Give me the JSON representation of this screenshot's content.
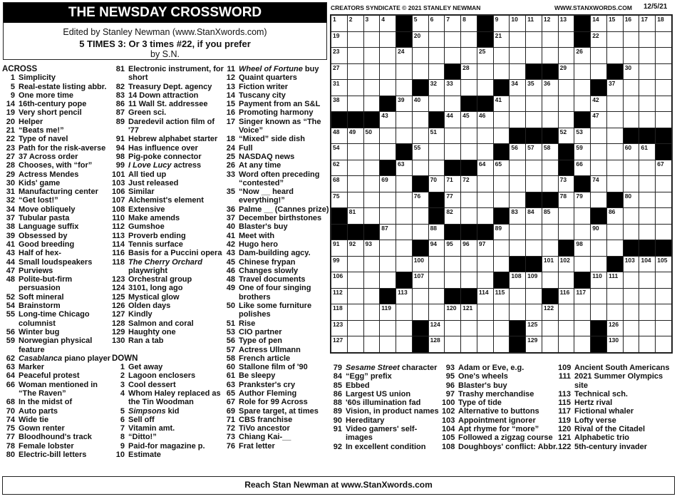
{
  "header": {
    "title": "THE NEWSDAY CROSSWORD",
    "editor": "Edited by Stanley Newman (www.StanXwords.com)",
    "puzzle_title": "5 TIMES 3: Or 3 times #22, if you prefer",
    "byline": "by S.N.",
    "copyright": "CREATORS SYNDICATE © 2021 STANLEY NEWMAN",
    "website": "WWW.STANXWORDS.COM",
    "date": "12/5/21"
  },
  "grid": {
    "rows": [
      "....#....#.....#.....",
      "....#....#.....#.....",
      ".....................",
      ".......#....##...#...",
      ".....#....#.....#....",
      "...#....##...........",
      "###...#........#.....",
      "...........###....###",
      "....#.....#...#.....#",
      "...#...##.....#......",
      ".....#.........#.....",
      "......#.....##...#...",
      "#.....#...#.....#....",
      "###....###...........",
      ".....#........#...###",
      "...........##....#...",
      "....#.....#....#.....",
      "...#...##....#.......",
      ".....................",
      ".....#.....#....#....",
      ".....#.....#....#...."
    ]
  },
  "labels": {
    "across": "ACROSS",
    "down": "DOWN"
  },
  "columns": [
    [
      {
        "h": "across"
      },
      {
        "n": "1",
        "t": "Simplicity"
      },
      {
        "n": "5",
        "t": "Real-estate listing abbr."
      },
      {
        "n": "9",
        "t": "One more time"
      },
      {
        "n": "14",
        "t": "16th-century pope"
      },
      {
        "n": "19",
        "t": "Very short pencil"
      },
      {
        "n": "20",
        "t": "Helper"
      },
      {
        "n": "21",
        "t": "“Beats me!”"
      },
      {
        "n": "22",
        "t": "Type of navel"
      },
      {
        "n": "23",
        "t": "Path for the risk-averse"
      },
      {
        "n": "27",
        "t": "37 Across order"
      },
      {
        "n": "28",
        "t": "Chooses, with “for”"
      },
      {
        "n": "29",
        "t": "Actress Mendes"
      },
      {
        "n": "30",
        "t": "Kids' game"
      },
      {
        "n": "31",
        "t": "Manufacturing center"
      },
      {
        "n": "32",
        "t": "“Get lost!”"
      },
      {
        "n": "34",
        "t": "Move obliquely"
      },
      {
        "n": "37",
        "t": "Tubular pasta"
      },
      {
        "n": "38",
        "t": "Language suffix"
      },
      {
        "n": "39",
        "t": "Obsessed by"
      },
      {
        "n": "41",
        "t": "Good breeding"
      },
      {
        "n": "43",
        "t": "Half of hex-"
      },
      {
        "n": "44",
        "t": "Small loudspeakers"
      },
      {
        "n": "47",
        "t": "Purviews"
      },
      {
        "n": "48",
        "t": "Polite-but-firm persuasion"
      },
      {
        "n": "52",
        "t": "Soft mineral"
      },
      {
        "n": "54",
        "t": "Brainstorm"
      },
      {
        "n": "55",
        "t": "Long-time Chicago columnist"
      },
      {
        "n": "56",
        "t": "Winter bug"
      },
      {
        "n": "59",
        "t": "Norwegian physical feature"
      },
      {
        "n": "62",
        "it": "Casablanca",
        "t": " piano player"
      },
      {
        "n": "63",
        "t": "Marker"
      },
      {
        "n": "64",
        "t": "Peaceful protest"
      },
      {
        "n": "66",
        "t": "Woman mentioned in “The Raven”"
      },
      {
        "n": "68",
        "t": "In the midst of"
      },
      {
        "n": "70",
        "t": "Auto parts"
      },
      {
        "n": "74",
        "t": "Wide tie"
      },
      {
        "n": "75",
        "t": "Gown renter"
      },
      {
        "n": "77",
        "t": "Bloodhound's track"
      },
      {
        "n": "78",
        "t": "Female lobster"
      },
      {
        "n": "80",
        "t": "Electric-bill letters"
      }
    ],
    [
      {
        "n": "81",
        "t": "Electronic instrument, for short"
      },
      {
        "n": "82",
        "t": "Treasury Dept. agency"
      },
      {
        "n": "83",
        "t": "14 Down attraction"
      },
      {
        "n": "86",
        "t": "11 Wall St. addressee"
      },
      {
        "n": "87",
        "t": "Green sci."
      },
      {
        "n": "89",
        "t": "Daredevil action film of '77"
      },
      {
        "n": "91",
        "t": "Hebrew alphabet starter"
      },
      {
        "n": "94",
        "t": "Has influence over"
      },
      {
        "n": "98",
        "t": "Pig-poke connector"
      },
      {
        "n": "99",
        "it": "I Love Lucy",
        "t": " actress"
      },
      {
        "n": "101",
        "t": "All tied up"
      },
      {
        "n": "103",
        "t": "Just released"
      },
      {
        "n": "106",
        "t": "Similar"
      },
      {
        "n": "107",
        "t": "Alchemist's element"
      },
      {
        "n": "108",
        "t": "Extensive"
      },
      {
        "n": "110",
        "t": "Make amends"
      },
      {
        "n": "112",
        "t": "Gumshoe"
      },
      {
        "n": "113",
        "t": "Proverb ending"
      },
      {
        "n": "114",
        "t": "Tennis surface"
      },
      {
        "n": "116",
        "t": "Basis for a Puccini opera"
      },
      {
        "n": "118",
        "it": "The Cherry Orchard",
        "t": " playwright"
      },
      {
        "n": "123",
        "t": "Orchestral group"
      },
      {
        "n": "124",
        "t": "3101, long ago"
      },
      {
        "n": "125",
        "t": "Mystical glow"
      },
      {
        "n": "126",
        "t": "Olden days"
      },
      {
        "n": "127",
        "t": "Kindly"
      },
      {
        "n": "128",
        "t": "Salmon and coral"
      },
      {
        "n": "129",
        "t": "Haughty one"
      },
      {
        "n": "130",
        "t": "Ran a tab"
      },
      {
        "sp": true
      },
      {
        "h": "down"
      },
      {
        "n": "1",
        "t": "Get away"
      },
      {
        "n": "2",
        "t": "Lagoon enclosers"
      },
      {
        "n": "3",
        "t": "Cool dessert"
      },
      {
        "n": "4",
        "t": "Whom Haley replaced as the Tin Woodman"
      },
      {
        "n": "5",
        "it": "Simpsons",
        "t": " kid"
      },
      {
        "n": "6",
        "t": "Sell off"
      },
      {
        "n": "7",
        "t": "Vitamin amt."
      },
      {
        "n": "8",
        "t": "“Ditto!”"
      },
      {
        "n": "9",
        "t": "Paid-for magazine p."
      },
      {
        "n": "10",
        "t": "Estimate"
      }
    ],
    [
      {
        "n": "11",
        "it": "Wheel of Fortune",
        "t": " buy"
      },
      {
        "n": "12",
        "t": "Quaint quarters"
      },
      {
        "n": "13",
        "t": "Fiction writer"
      },
      {
        "n": "14",
        "t": "Tuscany city"
      },
      {
        "n": "15",
        "t": "Payment from an S&L"
      },
      {
        "n": "16",
        "t": "Promoting harmony"
      },
      {
        "n": "17",
        "t": "Singer known as “The Voice”"
      },
      {
        "n": "18",
        "t": "“Mixed” side dish"
      },
      {
        "n": "24",
        "t": "Full"
      },
      {
        "n": "25",
        "t": "NASDAQ news"
      },
      {
        "n": "26",
        "t": "At any time"
      },
      {
        "n": "33",
        "t": "Word often preceding “contested”"
      },
      {
        "n": "35",
        "t": "“Now __ heard everything!”"
      },
      {
        "n": "36",
        "t": "Palme __ (Cannes prize)"
      },
      {
        "n": "37",
        "t": "December birthstones"
      },
      {
        "n": "40",
        "t": "Blaster's buy"
      },
      {
        "n": "41",
        "t": "Meet with"
      },
      {
        "n": "42",
        "t": "Hugo hero"
      },
      {
        "n": "43",
        "t": "Dam-building agcy."
      },
      {
        "n": "45",
        "t": "Chinese frypan"
      },
      {
        "n": "46",
        "t": "Changes slowly"
      },
      {
        "n": "48",
        "t": "Travel documents"
      },
      {
        "n": "49",
        "t": "One of four singing brothers"
      },
      {
        "n": "50",
        "t": "Like some furniture polishes"
      },
      {
        "n": "51",
        "t": "Rise"
      },
      {
        "n": "53",
        "t": "CIO partner"
      },
      {
        "n": "56",
        "t": "Type of pen"
      },
      {
        "n": "57",
        "t": "Actress Ullmann"
      },
      {
        "n": "58",
        "t": "French article"
      },
      {
        "n": "60",
        "t": "Stallone film of '90"
      },
      {
        "n": "61",
        "t": "Be sleepy"
      },
      {
        "n": "63",
        "t": "Prankster's cry"
      },
      {
        "n": "65",
        "t": "Author Fleming"
      },
      {
        "n": "67",
        "t": "Role for 99 Across"
      },
      {
        "n": "69",
        "t": "Spare target, at times"
      },
      {
        "n": "71",
        "t": "CBS franchise"
      },
      {
        "n": "72",
        "t": "TiVo ancestor"
      },
      {
        "n": "73",
        "t": "Chiang Kai-__"
      },
      {
        "n": "76",
        "t": "Frat letter"
      }
    ],
    [
      {
        "n": "79",
        "it": "Sesame Street",
        "t": " character"
      },
      {
        "n": "84",
        "t": "“Egg” prefix"
      },
      {
        "n": "85",
        "t": "Ebbed"
      },
      {
        "n": "86",
        "t": "Largest US union"
      },
      {
        "n": "88",
        "t": "'60s illumination fad"
      },
      {
        "n": "89",
        "t": "Vision, in product names"
      },
      {
        "n": "90",
        "t": "Hereditary"
      },
      {
        "n": "91",
        "t": "Video gamers' self-images"
      },
      {
        "n": "92",
        "t": "In excellent condition"
      }
    ],
    [
      {
        "n": "93",
        "t": "Adam or Eve, e.g."
      },
      {
        "n": "95",
        "t": "One's wheels"
      },
      {
        "n": "96",
        "t": "Blaster's buy"
      },
      {
        "n": "97",
        "t": "Trashy merchandise"
      },
      {
        "n": "100",
        "t": "Type of tide"
      },
      {
        "n": "102",
        "t": "Alternative to buttons"
      },
      {
        "n": "103",
        "t": "Appointment ignorer"
      },
      {
        "n": "104",
        "t": "Apt rhyme for “more”"
      },
      {
        "n": "105",
        "t": "Followed a zigzag course"
      },
      {
        "n": "108",
        "t": "Doughboys' conflict: Abbr."
      }
    ],
    [
      {
        "n": "109",
        "t": "Ancient South Americans"
      },
      {
        "n": "111",
        "t": "2021 Summer Olympics site"
      },
      {
        "n": "113",
        "t": "Technical sch."
      },
      {
        "n": "115",
        "t": "Hertz rival"
      },
      {
        "n": "117",
        "t": "Fictional whaler"
      },
      {
        "n": "119",
        "t": "Lofty verse"
      },
      {
        "n": "120",
        "t": "Rival of the Citadel"
      },
      {
        "n": "121",
        "t": "Alphabetic trio"
      },
      {
        "n": "122",
        "t": "5th-century invader"
      }
    ]
  ],
  "footer": {
    "text": "Reach Stan Newman at www.StanXwords.com"
  }
}
